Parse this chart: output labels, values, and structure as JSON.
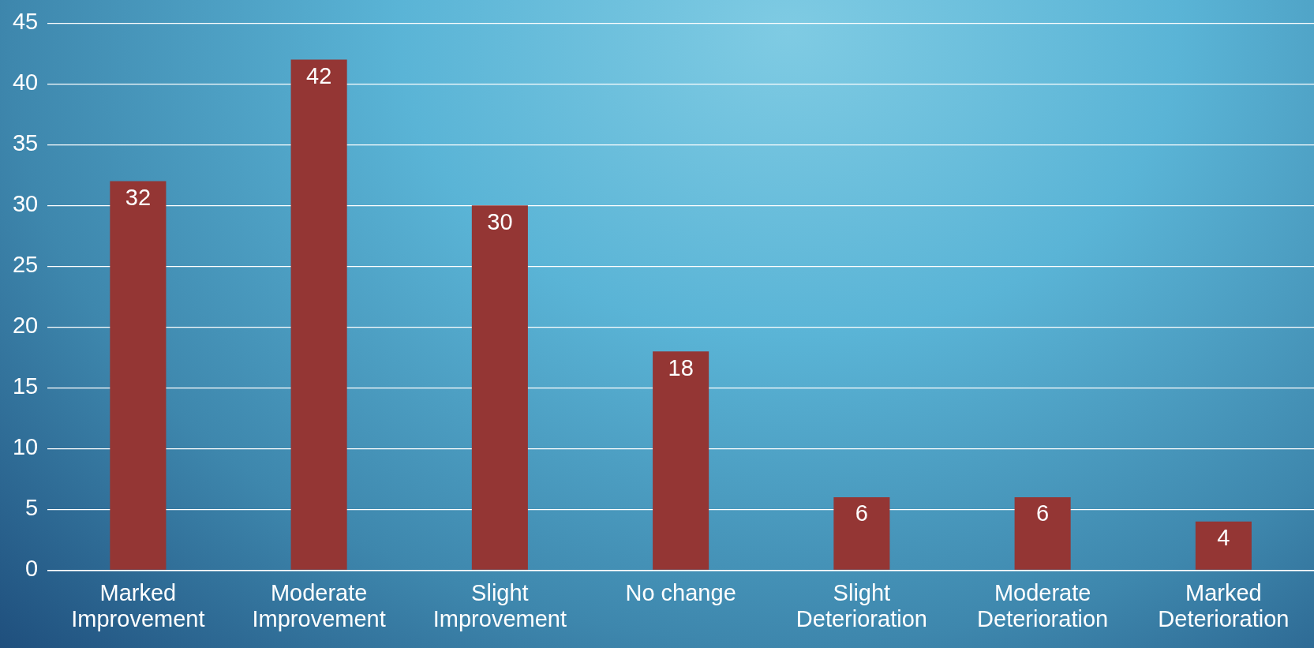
{
  "chart_data": {
    "type": "bar",
    "categories": [
      "Marked Improvement",
      "Moderate Improvement",
      "Slight Improvement",
      "No change",
      "Slight Deterioration",
      "Moderate Deterioration",
      "Marked Deterioration"
    ],
    "values": [
      32,
      42,
      30,
      18,
      6,
      6,
      4
    ],
    "color": "#943634",
    "ylim": [
      0,
      45
    ],
    "yticks": [
      0,
      5,
      10,
      15,
      20,
      25,
      30,
      35,
      40,
      45
    ],
    "grid": "y",
    "data_labels": true
  }
}
